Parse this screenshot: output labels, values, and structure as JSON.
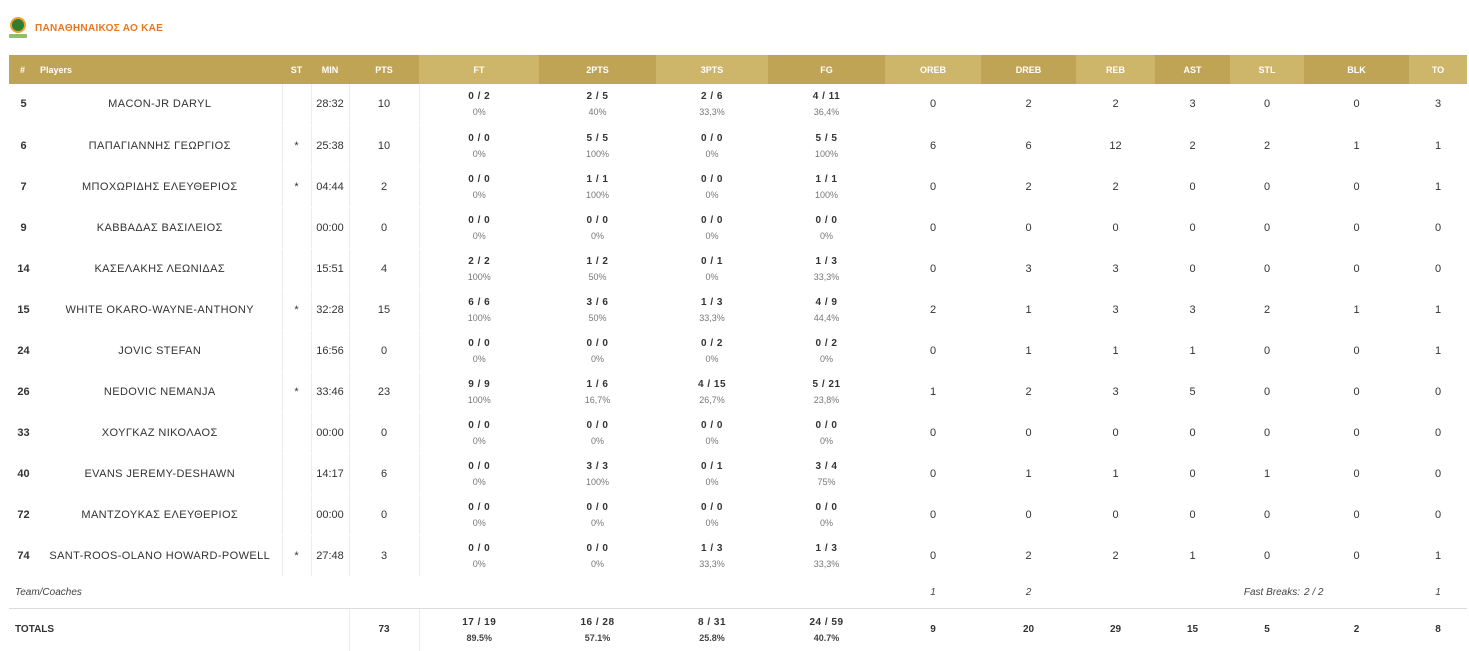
{
  "team": {
    "name": "ΠΑΝΑΘΗΝΑΙΚΟΣ ΑΟ ΚΑΕ"
  },
  "columns": {
    "no": "#",
    "players": "Players",
    "st": "ST",
    "min": "MIN",
    "pts": "PTS",
    "ft": "FT",
    "p2": "2PTS",
    "p3": "3PTS",
    "fg": "FG",
    "oreb": "OREB",
    "dreb": "DREB",
    "reb": "REB",
    "ast": "AST",
    "stl": "STL",
    "blk": "BLK",
    "to": "TO"
  },
  "players": [
    {
      "no": "5",
      "name": "MACON-JR DARYL",
      "st": "",
      "min": "28:32",
      "pts": "10",
      "ft": "0 / 2",
      "ft_pct": "0%",
      "p2": "2 / 5",
      "p2_pct": "40%",
      "p3": "2 / 6",
      "p3_pct": "33,3%",
      "fg": "4 / 11",
      "fg_pct": "36,4%",
      "oreb": "0",
      "dreb": "2",
      "reb": "2",
      "ast": "3",
      "stl": "0",
      "blk": "0",
      "to": "3"
    },
    {
      "no": "6",
      "name": "ΠΑΠΑΓΙΑΝΝΗΣ ΓΕΩΡΓΙΟΣ",
      "st": "*",
      "min": "25:38",
      "pts": "10",
      "ft": "0 / 0",
      "ft_pct": "0%",
      "p2": "5 / 5",
      "p2_pct": "100%",
      "p3": "0 / 0",
      "p3_pct": "0%",
      "fg": "5 / 5",
      "fg_pct": "100%",
      "oreb": "6",
      "dreb": "6",
      "reb": "12",
      "ast": "2",
      "stl": "2",
      "blk": "1",
      "to": "1"
    },
    {
      "no": "7",
      "name": "ΜΠΟΧΩΡΙΔΗΣ ΕΛΕΥΘΕΡΙΟΣ",
      "st": "*",
      "min": "04:44",
      "pts": "2",
      "ft": "0 / 0",
      "ft_pct": "0%",
      "p2": "1 / 1",
      "p2_pct": "100%",
      "p3": "0 / 0",
      "p3_pct": "0%",
      "fg": "1 / 1",
      "fg_pct": "100%",
      "oreb": "0",
      "dreb": "2",
      "reb": "2",
      "ast": "0",
      "stl": "0",
      "blk": "0",
      "to": "1"
    },
    {
      "no": "9",
      "name": "ΚΑΒΒΑΔΑΣ ΒΑΣΙΛΕΙΟΣ",
      "st": "",
      "min": "00:00",
      "pts": "0",
      "ft": "0 / 0",
      "ft_pct": "0%",
      "p2": "0 / 0",
      "p2_pct": "0%",
      "p3": "0 / 0",
      "p3_pct": "0%",
      "fg": "0 / 0",
      "fg_pct": "0%",
      "oreb": "0",
      "dreb": "0",
      "reb": "0",
      "ast": "0",
      "stl": "0",
      "blk": "0",
      "to": "0"
    },
    {
      "no": "14",
      "name": "ΚΑΣΕΛΑΚΗΣ ΛΕΩΝΙΔΑΣ",
      "st": "",
      "min": "15:51",
      "pts": "4",
      "ft": "2 / 2",
      "ft_pct": "100%",
      "p2": "1 / 2",
      "p2_pct": "50%",
      "p3": "0 / 1",
      "p3_pct": "0%",
      "fg": "1 / 3",
      "fg_pct": "33,3%",
      "oreb": "0",
      "dreb": "3",
      "reb": "3",
      "ast": "0",
      "stl": "0",
      "blk": "0",
      "to": "0"
    },
    {
      "no": "15",
      "name": "WHITE OKARO-WAYNE-ANTHONY",
      "st": "*",
      "min": "32:28",
      "pts": "15",
      "ft": "6 / 6",
      "ft_pct": "100%",
      "p2": "3 / 6",
      "p2_pct": "50%",
      "p3": "1 / 3",
      "p3_pct": "33,3%",
      "fg": "4 / 9",
      "fg_pct": "44,4%",
      "oreb": "2",
      "dreb": "1",
      "reb": "3",
      "ast": "3",
      "stl": "2",
      "blk": "1",
      "to": "1"
    },
    {
      "no": "24",
      "name": "JOVIC STEFAN",
      "st": "",
      "min": "16:56",
      "pts": "0",
      "ft": "0 / 0",
      "ft_pct": "0%",
      "p2": "0 / 0",
      "p2_pct": "0%",
      "p3": "0 / 2",
      "p3_pct": "0%",
      "fg": "0 / 2",
      "fg_pct": "0%",
      "oreb": "0",
      "dreb": "1",
      "reb": "1",
      "ast": "1",
      "stl": "0",
      "blk": "0",
      "to": "1"
    },
    {
      "no": "26",
      "name": "NEDOVIC NEMANJA",
      "st": "*",
      "min": "33:46",
      "pts": "23",
      "ft": "9 / 9",
      "ft_pct": "100%",
      "p2": "1 / 6",
      "p2_pct": "16,7%",
      "p3": "4 / 15",
      "p3_pct": "26,7%",
      "fg": "5 / 21",
      "fg_pct": "23,8%",
      "oreb": "1",
      "dreb": "2",
      "reb": "3",
      "ast": "5",
      "stl": "0",
      "blk": "0",
      "to": "0"
    },
    {
      "no": "33",
      "name": "ΧΟΥΓΚΑΖ ΝΙΚΟΛΑΟΣ",
      "st": "",
      "min": "00:00",
      "pts": "0",
      "ft": "0 / 0",
      "ft_pct": "0%",
      "p2": "0 / 0",
      "p2_pct": "0%",
      "p3": "0 / 0",
      "p3_pct": "0%",
      "fg": "0 / 0",
      "fg_pct": "0%",
      "oreb": "0",
      "dreb": "0",
      "reb": "0",
      "ast": "0",
      "stl": "0",
      "blk": "0",
      "to": "0"
    },
    {
      "no": "40",
      "name": "EVANS JEREMY-DESHAWN",
      "st": "",
      "min": "14:17",
      "pts": "6",
      "ft": "0 / 0",
      "ft_pct": "0%",
      "p2": "3 / 3",
      "p2_pct": "100%",
      "p3": "0 / 1",
      "p3_pct": "0%",
      "fg": "3 / 4",
      "fg_pct": "75%",
      "oreb": "0",
      "dreb": "1",
      "reb": "1",
      "ast": "0",
      "stl": "1",
      "blk": "0",
      "to": "0"
    },
    {
      "no": "72",
      "name": "ΜΑΝΤΖΟΥΚΑΣ ΕΛΕΥΘΕΡΙΟΣ",
      "st": "",
      "min": "00:00",
      "pts": "0",
      "ft": "0 / 0",
      "ft_pct": "0%",
      "p2": "0 / 0",
      "p2_pct": "0%",
      "p3": "0 / 0",
      "p3_pct": "0%",
      "fg": "0 / 0",
      "fg_pct": "0%",
      "oreb": "0",
      "dreb": "0",
      "reb": "0",
      "ast": "0",
      "stl": "0",
      "blk": "0",
      "to": "0"
    },
    {
      "no": "74",
      "name": "SANT-ROOS-OLANO HOWARD-POWELL",
      "st": "*",
      "min": "27:48",
      "pts": "3",
      "ft": "0 / 0",
      "ft_pct": "0%",
      "p2": "0 / 0",
      "p2_pct": "0%",
      "p3": "1 / 3",
      "p3_pct": "33,3%",
      "fg": "1 / 3",
      "fg_pct": "33,3%",
      "oreb": "0",
      "dreb": "2",
      "reb": "2",
      "ast": "1",
      "stl": "0",
      "blk": "0",
      "to": "1"
    }
  ],
  "coaches": {
    "label": "Team/Coaches",
    "oreb": "1",
    "dreb": "2",
    "fast_breaks_label": "Fast Breaks:",
    "fast_breaks_value": "2 / 2",
    "to": "1"
  },
  "totals": {
    "label": "TOTALS",
    "pts": "73",
    "ft": "17 / 19",
    "ft_pct": "89.5%",
    "p2": "16 / 28",
    "p2_pct": "57.1%",
    "p3": "8 / 31",
    "p3_pct": "25.8%",
    "fg": "24 / 59",
    "fg_pct": "40.7%",
    "oreb": "9",
    "dreb": "20",
    "reb": "29",
    "ast": "15",
    "stl": "5",
    "blk": "2",
    "to": "8"
  },
  "colors": {
    "header_bg": "#bfa456",
    "header_bg_alt": "#cdb56a",
    "team_name": "#e87722"
  }
}
